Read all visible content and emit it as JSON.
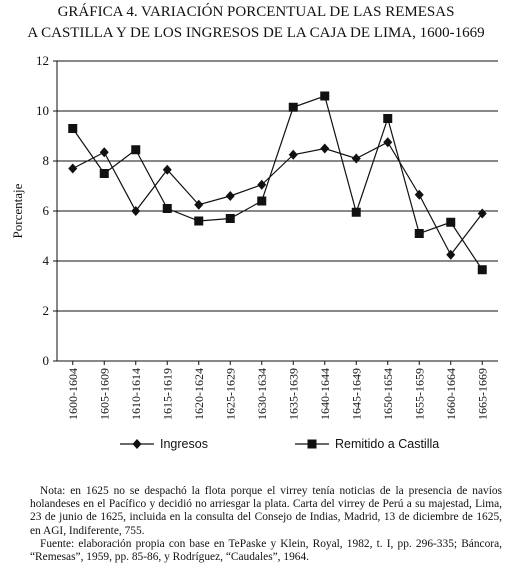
{
  "chart_data": {
    "type": "line",
    "title": [
      "GRÁFICA 4. VARIACIÓN PORCENTUAL DE LAS REMESAS",
      "A CASTILLA Y DE LOS INGRESOS DE LA CAJA DE LIMA, 1600-1669"
    ],
    "y_label": "Porcentaje",
    "categories": [
      "1600-1604",
      "1605-1609",
      "1610-1614",
      "1615-1619",
      "1620-1624",
      "1625-1629",
      "1630-1634",
      "1635-1639",
      "1640-1644",
      "1645-1649",
      "1650-1654",
      "1655-1659",
      "1660-1664",
      "1665-1669"
    ],
    "series": [
      {
        "name": "Ingresos",
        "color": "#111111",
        "marker": "diamond",
        "values": [
          7.7,
          8.35,
          6.0,
          7.65,
          6.25,
          6.6,
          7.05,
          8.25,
          8.5,
          8.1,
          8.75,
          6.65,
          4.25,
          5.9
        ]
      },
      {
        "name": "Remitido a Castilla",
        "color": "#111111",
        "marker": "square",
        "values": [
          9.3,
          7.5,
          8.45,
          6.1,
          5.6,
          5.7,
          6.4,
          10.15,
          10.6,
          5.95,
          9.7,
          5.1,
          5.55,
          3.65
        ]
      }
    ],
    "ylim": [
      0,
      12
    ],
    "yticks": [
      0,
      2,
      4,
      6,
      8,
      10,
      12
    ],
    "grid": true,
    "notes": [
      "Nota: en 1625 no se despachó la flota porque el virrey tenía noticias de la presencia de navíos holandeses en el Pacífico y decidió no arriesgar la plata. Carta del virrey de Perú a su majestad, Lima, 23 de junio de 1625, incluida en la consulta del Consejo de Indias, Madrid, 13 de diciembre de 1625, en AGI, Indiferente, 755.",
      "Fuente: elaboración propia con base en TePaske y Klein, Royal, 1982, t. I, pp. 296-335; Báncora, “Remesas”, 1959, pp. 85-86, y Rodríguez, “Caudales”, 1964."
    ]
  }
}
